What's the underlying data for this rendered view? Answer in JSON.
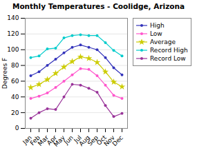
{
  "chart_data": {
    "type": "line",
    "title": "Monthly Temperatures - Coolidge, Arizona",
    "y_label": "Degrees F",
    "categories": [
      "Jan",
      "Feb",
      "Mar",
      "Apr",
      "May",
      "Jun",
      "Jul",
      "Aug",
      "Sep",
      "Oct",
      "Nov",
      "Dec"
    ],
    "series": [
      {
        "name": "High",
        "color": "#3333bb",
        "marker": "circle",
        "values": [
          67,
          72,
          80,
          88,
          96,
          103,
          106,
          103,
          100,
          90,
          77,
          68
        ]
      },
      {
        "name": "Low",
        "color": "#ff55cc",
        "marker": "circle",
        "values": [
          38,
          41,
          45,
          52,
          60,
          68,
          76,
          75,
          67,
          55,
          42,
          38
        ]
      },
      {
        "name": "Average",
        "color": "#cccc00",
        "marker": "star",
        "values": [
          52,
          56,
          62,
          70,
          78,
          85,
          91,
          89,
          84,
          72,
          59,
          53
        ]
      },
      {
        "name": "Record High",
        "color": "#00cccc",
        "marker": "circle",
        "values": [
          90,
          92,
          101,
          102,
          115,
          118,
          119,
          118,
          118,
          109,
          99,
          92
        ]
      },
      {
        "name": "Record Low",
        "color": "#993399",
        "marker": "circle",
        "values": [
          13,
          20,
          25,
          24,
          40,
          56,
          55,
          51,
          46,
          29,
          15,
          19
        ]
      }
    ],
    "ylim": [
      0,
      140
    ],
    "yticks": [
      0,
      20,
      40,
      60,
      80,
      100,
      120,
      140
    ],
    "grid": true,
    "legend": "right"
  }
}
